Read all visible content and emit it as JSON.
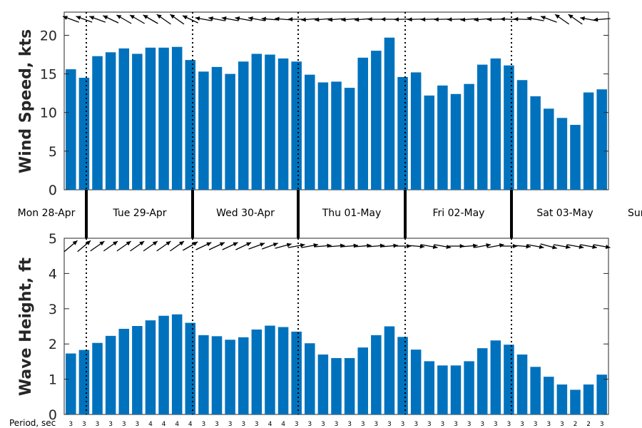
{
  "chart_data": [
    {
      "type": "bar",
      "ylabel": "Wind Speed, kts",
      "ylim": [
        0,
        23
      ],
      "yticks": [
        0,
        5,
        10,
        15,
        20
      ],
      "bar_color": "#0072bd",
      "values": [
        15.6,
        14.5,
        17.3,
        17.8,
        18.3,
        17.6,
        18.4,
        18.4,
        18.5,
        16.8,
        15.3,
        15.9,
        15.0,
        16.6,
        17.6,
        17.5,
        17.0,
        16.6,
        14.9,
        13.9,
        14.0,
        13.2,
        17.1,
        18.0,
        19.7,
        14.6,
        15.2,
        12.2,
        13.5,
        12.4,
        13.7,
        16.2,
        17.0,
        16.1,
        14.2,
        12.1,
        10.5,
        9.3,
        8.4,
        12.6,
        13.0
      ],
      "direction_arrows": "wind direction arrows shown at top of each bar column"
    },
    {
      "type": "bar",
      "ylabel": "Wave Height, ft",
      "ylim": [
        0,
        5
      ],
      "yticks": [
        0,
        1,
        2,
        3,
        4,
        5
      ],
      "bar_color": "#0072bd",
      "values": [
        1.73,
        1.83,
        2.03,
        2.23,
        2.43,
        2.51,
        2.67,
        2.8,
        2.84,
        2.6,
        2.25,
        2.22,
        2.12,
        2.19,
        2.41,
        2.52,
        2.48,
        2.35,
        2.02,
        1.7,
        1.6,
        1.6,
        1.9,
        2.25,
        2.5,
        2.2,
        1.84,
        1.51,
        1.39,
        1.39,
        1.51,
        1.88,
        2.1,
        1.98,
        1.7,
        1.35,
        1.07,
        0.85,
        0.7,
        0.85,
        1.13
      ],
      "direction_arrows": "wave direction arrows shown at top of each bar column"
    }
  ],
  "days": [
    "Mon 28-Apr",
    "Tue 29-Apr",
    "Wed 30-Apr",
    "Thu 01-May",
    "Fri 02-May",
    "Sat 03-May",
    "Sun"
  ],
  "periods": {
    "title": "Period, sec",
    "values": [
      "3",
      "3",
      "3",
      "3",
      "3",
      "3",
      "4",
      "4",
      "4",
      "4",
      "3",
      "3",
      "3",
      "3",
      "3",
      "4",
      "4",
      "3",
      "3",
      "3",
      "3",
      "3",
      "3",
      "3",
      "3",
      "3",
      "3",
      "3",
      "3",
      "3",
      "3",
      "3",
      "3",
      "3",
      "3",
      "3",
      "3",
      "3",
      "2",
      "2",
      "3"
    ]
  },
  "wind_arrow_angles": [
    200,
    200,
    200,
    205,
    210,
    210,
    210,
    215,
    215,
    205,
    190,
    190,
    190,
    190,
    190,
    185,
    185,
    180,
    175,
    175,
    175,
    175,
    175,
    180,
    180,
    178,
    178,
    178,
    178,
    178,
    175,
    175,
    178,
    182,
    182,
    190,
    200,
    215,
    215,
    190,
    175
  ],
  "wave_arrow_angles": [
    -40,
    -40,
    -35,
    -35,
    -35,
    -35,
    -35,
    -35,
    -35,
    -30,
    -25,
    -25,
    -25,
    -25,
    -20,
    -20,
    -15,
    -10,
    -10,
    -5,
    -5,
    -5,
    -5,
    -5,
    -5,
    0,
    5,
    10,
    10,
    0,
    -5,
    -10,
    -10,
    0,
    5,
    10,
    15,
    10,
    10,
    10,
    10
  ]
}
